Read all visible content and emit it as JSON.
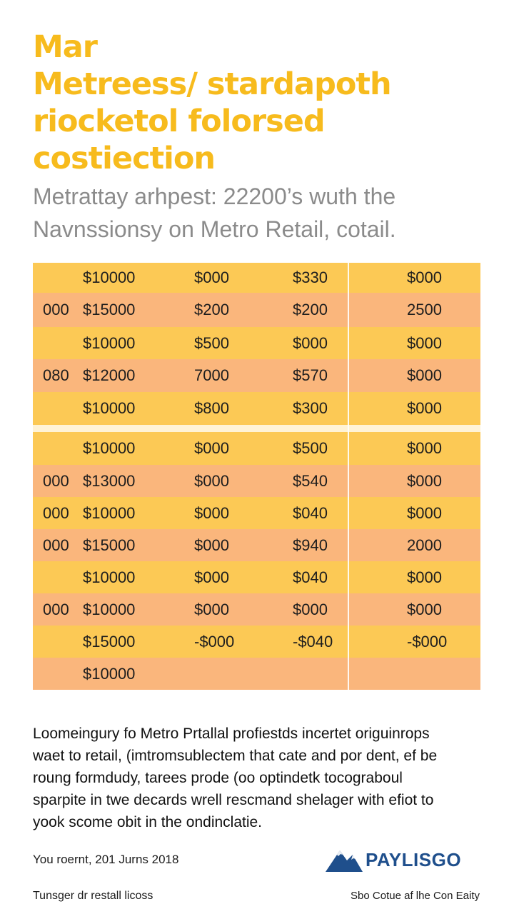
{
  "colors": {
    "title": "#f7bb1d",
    "subtitle": "#8b8b8b",
    "row_yellow": "#fcc955",
    "row_orange": "#fab67c",
    "logo": "#1f4f8c"
  },
  "title_lines": [
    "Mar",
    "Metreess/ stardapoth",
    "riocketol folorsed",
    "costiection"
  ],
  "subtitle_lines": [
    "Metrattay arhpest: 22200’s wuth the",
    "Navnssionsy on Metro Retail, cotail."
  ],
  "table": {
    "group1": [
      {
        "c0": "",
        "c1": "$10000",
        "c2": "$000",
        "c3": "$330",
        "c4": "$000",
        "tone": "yellow"
      },
      {
        "c0": "000",
        "c1": "$15000",
        "c2": "$200",
        "c3": "$200",
        "c4": "2500",
        "tone": "orange"
      },
      {
        "c0": "",
        "c1": "$10000",
        "c2": "$500",
        "c3": "$000",
        "c4": "$000",
        "tone": "yellow"
      },
      {
        "c0": "080",
        "c1": "$12000",
        "c2": "7000",
        "c3": "$570",
        "c4": "$000",
        "tone": "orange"
      },
      {
        "c0": "",
        "c1": "$10000",
        "c2": "$800",
        "c3": "$300",
        "c4": "$000",
        "tone": "yellow"
      }
    ],
    "group2": [
      {
        "c0": "",
        "c1": "$10000",
        "c2": "$000",
        "c3": "$500",
        "c4": "$000",
        "tone": "yellow"
      },
      {
        "c0": "000",
        "c1": "$13000",
        "c2": "$000",
        "c3": "$540",
        "c4": "$000",
        "tone": "orange"
      },
      {
        "c0": "000",
        "c1": "$10000",
        "c2": "$000",
        "c3": "$040",
        "c4": "$000",
        "tone": "yellow"
      },
      {
        "c0": "000",
        "c1": "$15000",
        "c2": "$000",
        "c3": "$940",
        "c4": "2000",
        "tone": "orange"
      },
      {
        "c0": "",
        "c1": "$10000",
        "c2": "$000",
        "c3": "$040",
        "c4": "$000",
        "tone": "yellow"
      },
      {
        "c0": "000",
        "c1": "$10000",
        "c2": "$000",
        "c3": "$000",
        "c4": "$000",
        "tone": "orange"
      },
      {
        "c0": "",
        "c1": "$15000",
        "c2": "-$000",
        "c3": "-$040",
        "c4": "-$000",
        "tone": "yellow"
      },
      {
        "c0": "",
        "c1": "$10000",
        "c2": "",
        "c3": "",
        "c4": "",
        "tone": "orange"
      }
    ]
  },
  "paragraph_lines": [
    "Loomeingury fo Metro Prtallal profiestds incertet origuinrops",
    "waet to retail, (imtromsublectem that cate and por dent, ef be",
    "roung formdudy, tarees prode (oo optindetk tocograboul",
    "sparpite in twe decards wrell rescmand shelager with efiot to",
    "yook scome obit in the ondinclatie."
  ],
  "date": "You roernt, 201 Jurns 2018",
  "logo_text": "PAYLISGO",
  "footer_left": "Tunsger dr restall licoss",
  "footer_right": "Sbo Cotue af lhe Con Eaity"
}
